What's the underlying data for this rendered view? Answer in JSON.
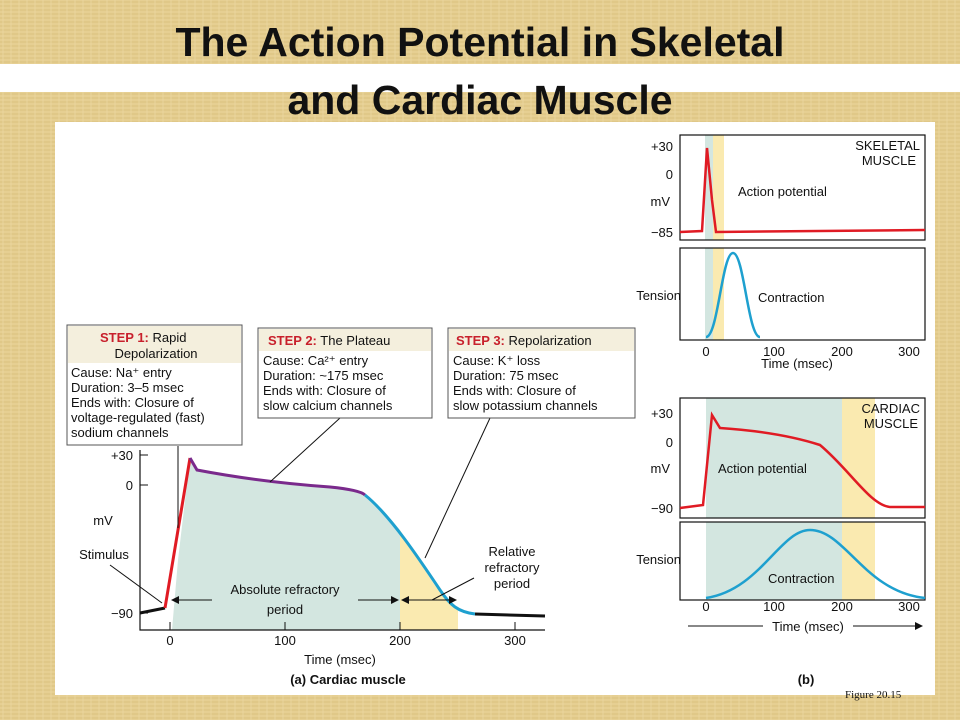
{
  "title": [
    "The Action Potential in Skeletal",
    "and Cardiac Muscle"
  ],
  "cardiac_panel": {
    "steps": [
      {
        "label": "STEP 1:",
        "heading": [
          "Rapid",
          "Depolarization"
        ],
        "lines": [
          "Cause: Na⁺ entry",
          "Duration: 3–5 msec",
          "Ends with: Closure of",
          "voltage-regulated (fast)",
          "sodium channels"
        ]
      },
      {
        "label": "STEP 2:",
        "heading": [
          "The Plateau"
        ],
        "lines": [
          "Cause: Ca²⁺ entry",
          "Duration: ~175 msec",
          "Ends with: Closure of",
          "slow calcium channels"
        ]
      },
      {
        "label": "STEP 3:",
        "heading": [
          "Repolarization"
        ],
        "lines": [
          "Cause: K⁺ loss",
          "Duration: 75 msec",
          "Ends with: Closure of",
          "slow potassium channels"
        ]
      }
    ],
    "y_ticks": [
      "+30",
      "0",
      "−90"
    ],
    "y_label": "mV",
    "x_ticks": [
      "0",
      "100",
      "200",
      "300"
    ],
    "x_label": "Time (msec)",
    "stimulus": "Stimulus",
    "absolute": [
      "Absolute refractory",
      "period"
    ],
    "relative": [
      "Relative",
      "refractory",
      "period"
    ],
    "caption": "(a) Cardiac muscle"
  },
  "comparison_panel": {
    "skeletal": {
      "label": [
        "SKELETAL",
        "MUSCLE"
      ],
      "y_ticks": [
        "+30",
        "0",
        "−85"
      ],
      "y_label": "mV",
      "potential_label": "Action potential",
      "tension_label": "Tension",
      "contraction_label": "Contraction",
      "x_ticks": [
        "0",
        "100",
        "200",
        "300"
      ],
      "x_label": "Time (msec)"
    },
    "cardiac": {
      "label": [
        "CARDIAC",
        "MUSCLE"
      ],
      "y_ticks": [
        "+30",
        "0",
        "−90"
      ],
      "y_label": "mV",
      "potential_label": "Action potential",
      "tension_label": "Tension",
      "contraction_label": "Contraction",
      "x_ticks": [
        "0",
        "100",
        "200",
        "300"
      ],
      "x_label": "Time (msec)"
    },
    "caption": "(b)"
  },
  "figure_note": "Figure 20.15"
}
